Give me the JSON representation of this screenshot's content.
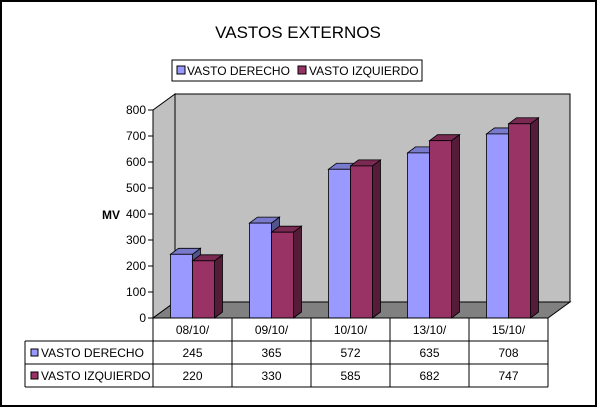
{
  "chart_data": {
    "type": "bar",
    "title": "VASTOS EXTERNOS",
    "ylabel": "MV",
    "xlabel": "",
    "categories": [
      "08/10/",
      "09/10/",
      "10/10/",
      "13/10/",
      "15/10/"
    ],
    "series": [
      {
        "name": "VASTO DERECHO",
        "values": [
          245,
          365,
          572,
          635,
          708
        ]
      },
      {
        "name": "VASTO IZQUIERDO",
        "values": [
          220,
          330,
          585,
          682,
          747
        ]
      }
    ],
    "ylim": [
      0,
      800
    ],
    "yticks": [
      0,
      100,
      200,
      300,
      400,
      500,
      600,
      700,
      800
    ],
    "legend_position": "top",
    "data_table": true,
    "grid": false,
    "style": "3d",
    "colors": {
      "series": [
        "#9999ff",
        "#993366"
      ],
      "wall": "#c0c0c0",
      "floor": "#808080"
    }
  }
}
